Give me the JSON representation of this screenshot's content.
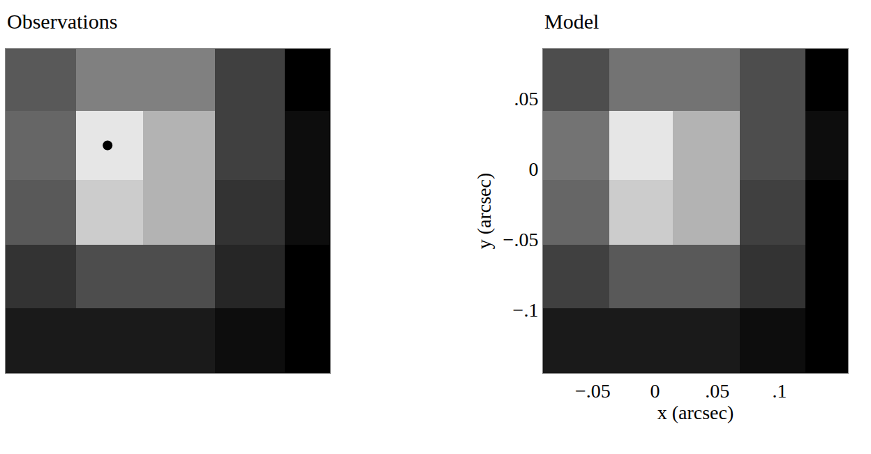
{
  "chart_data": [
    {
      "type": "heatmap",
      "title": "Observations",
      "tick_labels": false,
      "xlim": [
        -0.09,
        0.155
      ],
      "ylim": [
        -0.145,
        0.085
      ],
      "x_edges": [
        -0.09,
        -0.037,
        0.014,
        0.068,
        0.121,
        0.155
      ],
      "y_edges": [
        -0.145,
        -0.099,
        -0.054,
        -0.008,
        0.041,
        0.085
      ],
      "cells": [
        [
          0.1,
          0.1,
          0.1,
          0.05,
          0
        ],
        [
          0.2,
          0.3,
          0.3,
          0.15,
          0
        ],
        [
          0.35,
          0.8,
          0.7,
          0.2,
          0.05
        ],
        [
          0.4,
          0.9,
          0.7,
          0.25,
          0.05
        ],
        [
          0.35,
          0.5,
          0.5,
          0.25,
          0
        ]
      ],
      "zlim": [
        0,
        1
      ],
      "colors": [
        "#000000",
        "#ffffff"
      ],
      "points": {
        "x": [
          -0.013
        ],
        "y": [
          0.0165
        ],
        "color": "#000000",
        "marker": "circle"
      }
    },
    {
      "type": "heatmap",
      "title": "Model",
      "x_label": "x (arcsec)",
      "y_label": "y (arcsec)",
      "xlim": [
        -0.09,
        0.155
      ],
      "ylim": [
        -0.145,
        0.085
      ],
      "xticks": [
        {
          "value": -0.05,
          "label": "−.05"
        },
        0,
        {
          "value": 0.05,
          "label": ".05"
        },
        {
          "value": 0.1,
          "label": ".1"
        }
      ],
      "yticks": [
        {
          "value": 0.05,
          "label": ".05"
        },
        0,
        {
          "value": -0.05,
          "label": "−.05"
        },
        {
          "value": -0.1,
          "label": "−.1"
        }
      ],
      "x_edges": [
        -0.09,
        -0.037,
        0.014,
        0.068,
        0.121,
        0.155
      ],
      "y_edges": [
        -0.145,
        -0.099,
        -0.054,
        -0.008,
        0.041,
        0.085
      ],
      "cells": [
        [
          0.1,
          0.1,
          0.1,
          0.05,
          0
        ],
        [
          0.25,
          0.35,
          0.35,
          0.2,
          0
        ],
        [
          0.4,
          0.8,
          0.7,
          0.25,
          0
        ],
        [
          0.45,
          0.9,
          0.7,
          0.3,
          0.05
        ],
        [
          0.3,
          0.45,
          0.45,
          0.3,
          0
        ]
      ],
      "zlim": [
        0,
        1
      ],
      "colors": [
        "#000000",
        "#ffffff"
      ]
    }
  ]
}
